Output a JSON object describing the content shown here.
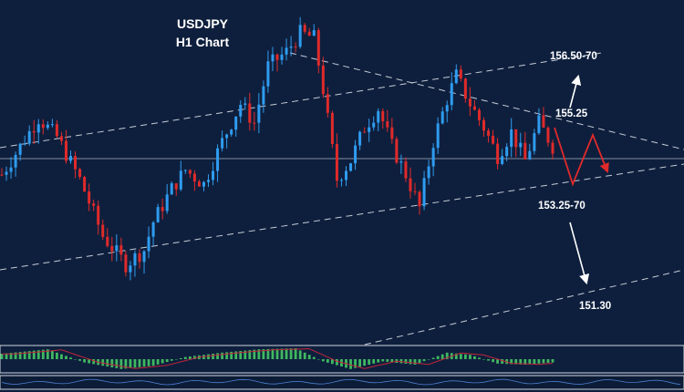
{
  "title_line1": "USDJPY",
  "title_line2": "H1 Chart",
  "colors": {
    "background": "#0e1f3d",
    "bull": "#2f9cf0",
    "bear": "#e02a2a",
    "trendline": "#c6ccd6",
    "arrow_white": "#ffffff",
    "arrow_red": "#e02a2a",
    "osc_green": "#3fb860",
    "osc_line": "#c0263a"
  },
  "chart_data": {
    "type": "candlestick",
    "title": "USDJPY H1 Chart",
    "ylim": [
      150.0,
      157.3
    ],
    "horizontal_line": 154.25,
    "levels": [
      {
        "label": "156.50-70",
        "direction": "up"
      },
      {
        "label": "155.25",
        "direction": "resistance"
      },
      {
        "label": "153.25-70",
        "direction": "support"
      },
      {
        "label": "151.30",
        "direction": "down"
      }
    ],
    "close_path": [
      [
        0,
        153.6
      ],
      [
        4,
        154.2
      ],
      [
        8,
        154.8
      ],
      [
        12,
        154.4
      ],
      [
        17,
        153.5
      ],
      [
        22,
        152.3
      ],
      [
        27,
        151.7
      ],
      [
        31,
        152.0
      ],
      [
        33,
        152.6
      ],
      [
        37,
        153.3
      ],
      [
        40,
        153.7
      ],
      [
        44,
        153.4
      ],
      [
        48,
        154.3
      ],
      [
        52,
        155.1
      ],
      [
        55,
        154.7
      ],
      [
        58,
        155.9
      ],
      [
        62,
        156.2
      ],
      [
        65,
        156.6
      ],
      [
        68,
        156.5
      ],
      [
        70,
        155.4
      ],
      [
        73,
        153.5
      ],
      [
        76,
        153.9
      ],
      [
        79,
        154.6
      ],
      [
        82,
        155.0
      ],
      [
        85,
        154.2
      ],
      [
        88,
        153.6
      ],
      [
        91,
        152.9
      ],
      [
        94,
        154.3
      ],
      [
        97,
        155.2
      ],
      [
        99,
        155.7
      ],
      [
        102,
        155.1
      ],
      [
        105,
        154.6
      ],
      [
        108,
        154.0
      ],
      [
        111,
        154.5
      ],
      [
        114,
        153.9
      ],
      [
        117,
        154.7
      ],
      [
        120,
        154.2
      ]
    ],
    "oscillator": [
      [
        0,
        0.5
      ],
      [
        10,
        0.9
      ],
      [
        18,
        -0.3
      ],
      [
        26,
        -0.9
      ],
      [
        33,
        -0.6
      ],
      [
        40,
        0.2
      ],
      [
        48,
        0.6
      ],
      [
        56,
        0.9
      ],
      [
        64,
        1.0
      ],
      [
        70,
        -0.2
      ],
      [
        76,
        -0.9
      ],
      [
        83,
        -0.2
      ],
      [
        90,
        -0.5
      ],
      [
        97,
        0.6
      ],
      [
        102,
        0.4
      ],
      [
        108,
        -0.4
      ],
      [
        114,
        -0.5
      ],
      [
        120,
        -0.3
      ]
    ]
  }
}
